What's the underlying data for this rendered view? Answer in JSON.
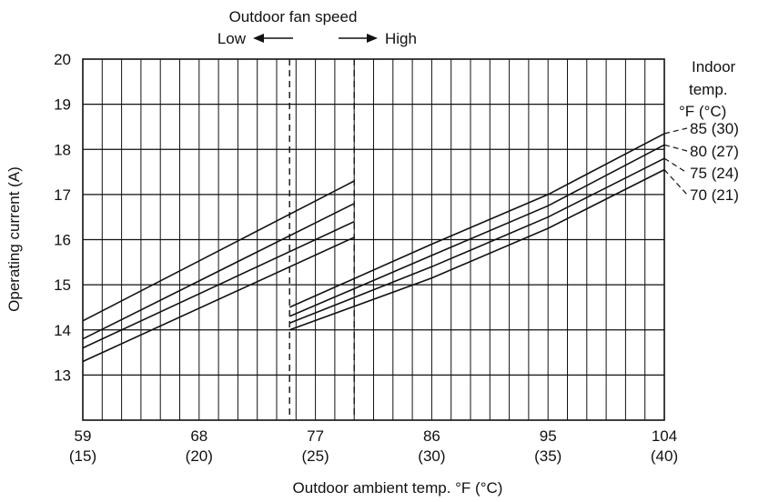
{
  "chart_data": {
    "type": "line",
    "title": "",
    "header": {
      "title": "Outdoor fan speed",
      "low_label": "Low",
      "high_label": "High"
    },
    "xlabel": "Outdoor ambient temp. °F (°C)",
    "ylabel": "Operating current (A)",
    "xlim": [
      59,
      104
    ],
    "ylim": [
      12,
      20
    ],
    "x_ticks": [
      {
        "f": "59",
        "c": "(15)"
      },
      {
        "f": "68",
        "c": "(20)"
      },
      {
        "f": "77",
        "c": "(25)"
      },
      {
        "f": "86",
        "c": "(30)"
      },
      {
        "f": "95",
        "c": "(35)"
      },
      {
        "f": "104",
        "c": "(40)"
      }
    ],
    "y_ticks": [
      "13",
      "14",
      "15",
      "16",
      "17",
      "18",
      "19",
      "20"
    ],
    "fan_speed_boundaries_f": [
      75,
      80
    ],
    "legend_title": [
      "Indoor",
      "temp.",
      "°F (°C)"
    ],
    "grid": true,
    "series": [
      {
        "name": "85 (30)",
        "low_fan": [
          [
            59,
            14.2
          ],
          [
            80,
            17.3
          ]
        ],
        "high_fan": [
          [
            75,
            14.5
          ],
          [
            86,
            15.9
          ],
          [
            95,
            17.0
          ],
          [
            104,
            18.35
          ]
        ]
      },
      {
        "name": "80 (27)",
        "low_fan": [
          [
            59,
            13.8
          ],
          [
            80,
            16.8
          ]
        ],
        "high_fan": [
          [
            75,
            14.3
          ],
          [
            86,
            15.65
          ],
          [
            95,
            16.75
          ],
          [
            104,
            18.1
          ]
        ]
      },
      {
        "name": "75 (24)",
        "low_fan": [
          [
            59,
            13.6
          ],
          [
            80,
            16.4
          ]
        ],
        "high_fan": [
          [
            75,
            14.15
          ],
          [
            86,
            15.4
          ],
          [
            95,
            16.5
          ],
          [
            104,
            17.8
          ]
        ]
      },
      {
        "name": "70 (21)",
        "low_fan": [
          [
            59,
            13.3
          ],
          [
            80,
            16.05
          ]
        ],
        "high_fan": [
          [
            75,
            14.0
          ],
          [
            86,
            15.15
          ],
          [
            95,
            16.25
          ],
          [
            104,
            17.55
          ]
        ]
      }
    ]
  }
}
